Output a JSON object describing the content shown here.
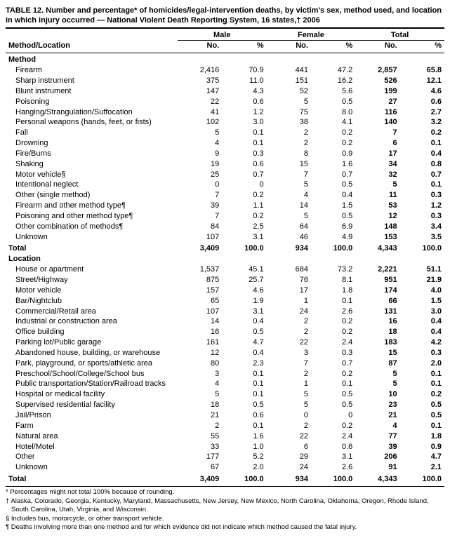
{
  "title": "TABLE 12. Number and percentage* of homicides/legal-intervention deaths, by victim's sex, method used, and location in which injury occurred — National Violent Death Reporting System, 16 states,† 2006",
  "columns": {
    "method_location": "Method/Location",
    "groups": [
      "Male",
      "Female",
      "Total"
    ],
    "sub": [
      "No.",
      "%"
    ]
  },
  "sections": [
    {
      "label": "Method",
      "rows": [
        {
          "label": "Firearm",
          "m_no": "2,416",
          "m_pct": "70.9",
          "f_no": "441",
          "f_pct": "47.2",
          "t_no": "2,857",
          "t_pct": "65.8"
        },
        {
          "label": "Sharp instrument",
          "m_no": "375",
          "m_pct": "11.0",
          "f_no": "151",
          "f_pct": "16.2",
          "t_no": "526",
          "t_pct": "12.1"
        },
        {
          "label": "Blunt instrument",
          "m_no": "147",
          "m_pct": "4.3",
          "f_no": "52",
          "f_pct": "5.6",
          "t_no": "199",
          "t_pct": "4.6"
        },
        {
          "label": "Poisoning",
          "m_no": "22",
          "m_pct": "0.6",
          "f_no": "5",
          "f_pct": "0.5",
          "t_no": "27",
          "t_pct": "0.6"
        },
        {
          "label": "Hanging/Strangulation/Suffocation",
          "m_no": "41",
          "m_pct": "1.2",
          "f_no": "75",
          "f_pct": "8.0",
          "t_no": "116",
          "t_pct": "2.7"
        },
        {
          "label": "Personal weapons (hands, feet, or fists)",
          "m_no": "102",
          "m_pct": "3.0",
          "f_no": "38",
          "f_pct": "4.1",
          "t_no": "140",
          "t_pct": "3.2"
        },
        {
          "label": "Fall",
          "m_no": "5",
          "m_pct": "0.1",
          "f_no": "2",
          "f_pct": "0.2",
          "t_no": "7",
          "t_pct": "0.2"
        },
        {
          "label": "Drowning",
          "m_no": "4",
          "m_pct": "0.1",
          "f_no": "2",
          "f_pct": "0.2",
          "t_no": "6",
          "t_pct": "0.1"
        },
        {
          "label": "Fire/Burns",
          "m_no": "9",
          "m_pct": "0.3",
          "f_no": "8",
          "f_pct": "0.9",
          "t_no": "17",
          "t_pct": "0.4"
        },
        {
          "label": "Shaking",
          "m_no": "19",
          "m_pct": "0.6",
          "f_no": "15",
          "f_pct": "1.6",
          "t_no": "34",
          "t_pct": "0.8"
        },
        {
          "label": "Motor vehicle§",
          "m_no": "25",
          "m_pct": "0.7",
          "f_no": "7",
          "f_pct": "0.7",
          "t_no": "32",
          "t_pct": "0.7"
        },
        {
          "label": "Intentional neglect",
          "m_no": "0",
          "m_pct": "0",
          "f_no": "5",
          "f_pct": "0.5",
          "t_no": "5",
          "t_pct": "0.1"
        },
        {
          "label": "Other (single method)",
          "m_no": "7",
          "m_pct": "0.2",
          "f_no": "4",
          "f_pct": "0.4",
          "t_no": "11",
          "t_pct": "0.3"
        },
        {
          "label": "Firearm and other method type¶",
          "m_no": "39",
          "m_pct": "1.1",
          "f_no": "14",
          "f_pct": "1.5",
          "t_no": "53",
          "t_pct": "1.2"
        },
        {
          "label": "Poisoning and other method type¶",
          "m_no": "7",
          "m_pct": "0.2",
          "f_no": "5",
          "f_pct": "0.5",
          "t_no": "12",
          "t_pct": "0.3"
        },
        {
          "label": "Other combination of methods¶",
          "m_no": "84",
          "m_pct": "2.5",
          "f_no": "64",
          "f_pct": "6.9",
          "t_no": "148",
          "t_pct": "3.4"
        },
        {
          "label": "Unknown",
          "m_no": "107",
          "m_pct": "3.1",
          "f_no": "46",
          "f_pct": "4.9",
          "t_no": "153",
          "t_pct": "3.5"
        }
      ],
      "total": {
        "label": "Total",
        "m_no": "3,409",
        "m_pct": "100.0",
        "f_no": "934",
        "f_pct": "100.0",
        "t_no": "4,343",
        "t_pct": "100.0"
      }
    },
    {
      "label": "Location",
      "rows": [
        {
          "label": "House or apartment",
          "m_no": "1,537",
          "m_pct": "45.1",
          "f_no": "684",
          "f_pct": "73.2",
          "t_no": "2,221",
          "t_pct": "51.1"
        },
        {
          "label": "Street/Highway",
          "m_no": "875",
          "m_pct": "25.7",
          "f_no": "76",
          "f_pct": "8.1",
          "t_no": "951",
          "t_pct": "21.9"
        },
        {
          "label": "Motor vehicle",
          "m_no": "157",
          "m_pct": "4.6",
          "f_no": "17",
          "f_pct": "1.8",
          "t_no": "174",
          "t_pct": "4.0"
        },
        {
          "label": "Bar/Nightclub",
          "m_no": "65",
          "m_pct": "1.9",
          "f_no": "1",
          "f_pct": "0.1",
          "t_no": "66",
          "t_pct": "1.5"
        },
        {
          "label": "Commercial/Retail area",
          "m_no": "107",
          "m_pct": "3.1",
          "f_no": "24",
          "f_pct": "2.6",
          "t_no": "131",
          "t_pct": "3.0"
        },
        {
          "label": "Industrial or construction area",
          "m_no": "14",
          "m_pct": "0.4",
          "f_no": "2",
          "f_pct": "0.2",
          "t_no": "16",
          "t_pct": "0.4"
        },
        {
          "label": "Office building",
          "m_no": "16",
          "m_pct": "0.5",
          "f_no": "2",
          "f_pct": "0.2",
          "t_no": "18",
          "t_pct": "0.4"
        },
        {
          "label": "Parking lot/Public garage",
          "m_no": "161",
          "m_pct": "4.7",
          "f_no": "22",
          "f_pct": "2.4",
          "t_no": "183",
          "t_pct": "4.2"
        },
        {
          "label": "Abandoned house, building, or warehouse",
          "m_no": "12",
          "m_pct": "0.4",
          "f_no": "3",
          "f_pct": "0.3",
          "t_no": "15",
          "t_pct": "0.3"
        },
        {
          "label": "Park, playground, or sports/athletic area",
          "m_no": "80",
          "m_pct": "2.3",
          "f_no": "7",
          "f_pct": "0.7",
          "t_no": "87",
          "t_pct": "2.0"
        },
        {
          "label": "Preschool/School/College/School bus",
          "m_no": "3",
          "m_pct": "0.1",
          "f_no": "2",
          "f_pct": "0.2",
          "t_no": "5",
          "t_pct": "0.1"
        },
        {
          "label": "Public transportation/Station/Railroad tracks",
          "m_no": "4",
          "m_pct": "0.1",
          "f_no": "1",
          "f_pct": "0.1",
          "t_no": "5",
          "t_pct": "0.1"
        },
        {
          "label": "Hospital or medical facility",
          "m_no": "5",
          "m_pct": "0.1",
          "f_no": "5",
          "f_pct": "0.5",
          "t_no": "10",
          "t_pct": "0.2"
        },
        {
          "label": "Supervised residential facility",
          "m_no": "18",
          "m_pct": "0.5",
          "f_no": "5",
          "f_pct": "0.5",
          "t_no": "23",
          "t_pct": "0.5"
        },
        {
          "label": "Jail/Prison",
          "m_no": "21",
          "m_pct": "0.6",
          "f_no": "0",
          "f_pct": "0",
          "t_no": "21",
          "t_pct": "0.5"
        },
        {
          "label": "Farm",
          "m_no": "2",
          "m_pct": "0.1",
          "f_no": "2",
          "f_pct": "0.2",
          "t_no": "4",
          "t_pct": "0.1"
        },
        {
          "label": "Natural area",
          "m_no": "55",
          "m_pct": "1.6",
          "f_no": "22",
          "f_pct": "2.4",
          "t_no": "77",
          "t_pct": "1.8"
        },
        {
          "label": "Hotel/Motel",
          "m_no": "33",
          "m_pct": "1.0",
          "f_no": "6",
          "f_pct": "0.6",
          "t_no": "39",
          "t_pct": "0.9"
        },
        {
          "label": "Other",
          "m_no": "177",
          "m_pct": "5.2",
          "f_no": "29",
          "f_pct": "3.1",
          "t_no": "206",
          "t_pct": "4.7"
        },
        {
          "label": "Unknown",
          "m_no": "67",
          "m_pct": "2.0",
          "f_no": "24",
          "f_pct": "2.6",
          "t_no": "91",
          "t_pct": "2.1"
        }
      ],
      "total": {
        "label": "Total",
        "m_no": "3,409",
        "m_pct": "100.0",
        "f_no": "934",
        "f_pct": "100.0",
        "t_no": "4,343",
        "t_pct": "100.0"
      }
    }
  ],
  "footnotes": [
    "* Percentages might not total 100% because of rounding.",
    "† Alaska, Colorado, Georgia, Kentucky, Maryland, Massachusetts, New Jersey, New Mexico, North Carolina, Oklahoma, Oregon, Rhode Island, South Carolina, Utah, Virginia, and Wisconsin.",
    "§ Includes bus, motorcycle, or other transport vehicle.",
    "¶ Deaths involving more than one method and for which evidence did not indicate which method caused the fatal injury."
  ]
}
